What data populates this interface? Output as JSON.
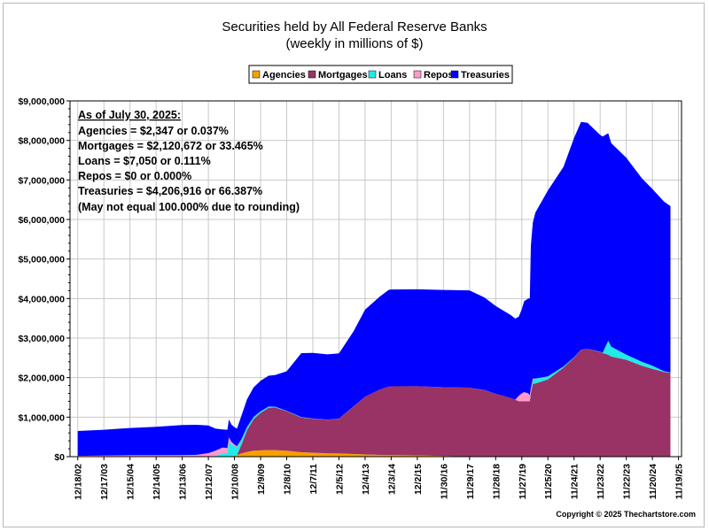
{
  "chart_data": {
    "type": "area",
    "title": "Securities held by All Federal Reserve Banks",
    "subtitle": "(weekly in millions of $)",
    "xlabel": "",
    "ylabel": "",
    "ylim": [
      0,
      9000000
    ],
    "y_ticks": [
      "$0",
      "$1,000,000",
      "$2,000,000",
      "$3,000,000",
      "$4,000,000",
      "$5,000,000",
      "$6,000,000",
      "$7,000,000",
      "$8,000,000",
      "$9,000,000"
    ],
    "x_ticks": [
      "12/18/02",
      "12/17/03",
      "12/15/04",
      "12/14/05",
      "12/13/06",
      "12/12/07",
      "12/10/08",
      "12/9/09",
      "12/8/10",
      "12/7/11",
      "12/5/12",
      "12/4/13",
      "12/3/14",
      "12/2/15",
      "11/30/16",
      "11/29/17",
      "11/28/18",
      "11/27/19",
      "11/25/20",
      "11/24/21",
      "11/23/22",
      "11/22/23",
      "11/20/24",
      "11/19/25"
    ],
    "grid": true,
    "stacked": true,
    "legend_position": "top",
    "colors": {
      "Agencies": "#f5a000",
      "Mortgages": "#993366",
      "Loans": "#22eaea",
      "Repos": "#ff99cc",
      "Treasuries": "#0000ff"
    },
    "x": [
      "2002-12-18",
      "2003-12-17",
      "2004-12-15",
      "2005-12-14",
      "2006-12-13",
      "2007-06-27",
      "2007-12-12",
      "2008-03-19",
      "2008-06-25",
      "2008-09-03",
      "2008-09-24",
      "2008-10-29",
      "2008-12-10",
      "2009-01-14",
      "2009-03-18",
      "2009-06-03",
      "2009-09-02",
      "2009-12-09",
      "2010-03-31",
      "2010-06-30",
      "2010-12-08",
      "2011-06-29",
      "2011-12-07",
      "2012-06-27",
      "2012-12-05",
      "2013-06-26",
      "2013-12-04",
      "2014-06-25",
      "2014-10-29",
      "2014-12-03",
      "2015-12-02",
      "2016-11-30",
      "2017-11-29",
      "2018-06-27",
      "2018-11-28",
      "2019-06-26",
      "2019-08-28",
      "2019-10-16",
      "2019-11-27",
      "2019-12-31",
      "2020-02-26",
      "2020-03-18",
      "2020-04-01",
      "2020-04-29",
      "2020-06-03",
      "2020-11-25",
      "2021-06-30",
      "2021-11-24",
      "2022-03-02",
      "2022-06-01",
      "2022-11-23",
      "2022-12-28",
      "2023-03-15",
      "2023-04-26",
      "2023-11-22",
      "2024-06-26",
      "2024-11-20",
      "2025-04-30",
      "2025-07-30"
    ],
    "series": [
      {
        "name": "Agencies",
        "values": [
          0,
          0,
          0,
          0,
          0,
          0,
          0,
          0,
          0,
          0,
          0,
          12000,
          25000,
          40000,
          80000,
          120000,
          150000,
          158000,
          168000,
          165000,
          150000,
          112000,
          100000,
          85000,
          80000,
          68000,
          57000,
          45000,
          41000,
          40000,
          33000,
          17000,
          6000,
          2400,
          2400,
          2400,
          2400,
          2400,
          2400,
          2400,
          2400,
          2400,
          2400,
          2400,
          2400,
          2400,
          2400,
          2400,
          2400,
          2400,
          2400,
          2400,
          2400,
          2400,
          2400,
          2400,
          2400,
          2400,
          2347
        ]
      },
      {
        "name": "Mortgages",
        "values": [
          0,
          0,
          0,
          0,
          0,
          0,
          0,
          0,
          0,
          0,
          0,
          0,
          0,
          0,
          230000,
          550000,
          800000,
          950000,
          1070000,
          1080000,
          1000000,
          880000,
          860000,
          850000,
          880000,
          1200000,
          1460000,
          1650000,
          1730000,
          1740000,
          1750000,
          1740000,
          1740000,
          1680000,
          1590000,
          1480000,
          1440000,
          1400000,
          1400000,
          1400000,
          1400000,
          1400000,
          1600000,
          1840000,
          1850000,
          1950000,
          2250000,
          2500000,
          2700000,
          2720000,
          2650000,
          2620000,
          2580000,
          2530000,
          2450000,
          2300000,
          2220000,
          2140000,
          2120672
        ]
      },
      {
        "name": "Loans",
        "values": [
          0,
          0,
          0,
          0,
          0,
          0,
          0,
          30000,
          80000,
          90000,
          400000,
          300000,
          250000,
          200000,
          120000,
          80000,
          50000,
          40000,
          30000,
          20000,
          10000,
          8000,
          5000,
          4000,
          3000,
          2000,
          1000,
          500,
          200,
          100,
          100,
          100,
          100,
          100,
          100,
          100,
          100,
          100,
          100,
          100,
          100,
          200,
          60000,
          90000,
          120000,
          80000,
          30000,
          10000,
          5000,
          5000,
          5000,
          5000,
          350000,
          250000,
          130000,
          100000,
          80000,
          20000,
          7050
        ]
      },
      {
        "name": "Repos",
        "values": [
          20000,
          30000,
          35000,
          35000,
          40000,
          45000,
          90000,
          120000,
          150000,
          130000,
          90000,
          60000,
          30000,
          20000,
          10000,
          0,
          0,
          0,
          0,
          0,
          0,
          0,
          0,
          0,
          0,
          0,
          0,
          0,
          0,
          0,
          0,
          0,
          0,
          0,
          0,
          0,
          0,
          140000,
          200000,
          230000,
          200000,
          150000,
          80000,
          40000,
          5000,
          0,
          0,
          0,
          0,
          0,
          0,
          0,
          0,
          0,
          0,
          0,
          0,
          0,
          0
        ]
      },
      {
        "name": "Treasuries",
        "values": [
          630000,
          650000,
          690000,
          720000,
          760000,
          760000,
          700000,
          560000,
          460000,
          460000,
          450000,
          440000,
          440000,
          450000,
          600000,
          700000,
          750000,
          770000,
          780000,
          800000,
          1000000,
          1620000,
          1660000,
          1650000,
          1650000,
          1900000,
          2200000,
          2350000,
          2450000,
          2450000,
          2450000,
          2460000,
          2460000,
          2340000,
          2220000,
          2100000,
          2050000,
          2000000,
          2130000,
          2300000,
          2400000,
          2450000,
          3600000,
          3950000,
          4200000,
          4700000,
          5050000,
          5550000,
          5760000,
          5720000,
          5480000,
          5470000,
          5250000,
          5150000,
          4980000,
          4640000,
          4470000,
          4290000,
          4206916
        ]
      }
    ],
    "legend": [
      "Agencies",
      "Mortgages",
      "Loans",
      "Repos",
      "Treasuries"
    ],
    "annotation": {
      "heading": "As of July 30, 2025:",
      "lines": [
        "Agencies = $2,347 or 0.037%",
        "Mortgages = $2,120,672 or 33.465%",
        "Loans = $7,050 or 0.111%",
        "Repos = $0 or 0.000%",
        "Treasuries = $4,206,916 or 66.387%",
        "(May not equal 100.000% due to rounding)"
      ]
    },
    "copyright": "Copyright © 2025 Thechartstore.com"
  }
}
